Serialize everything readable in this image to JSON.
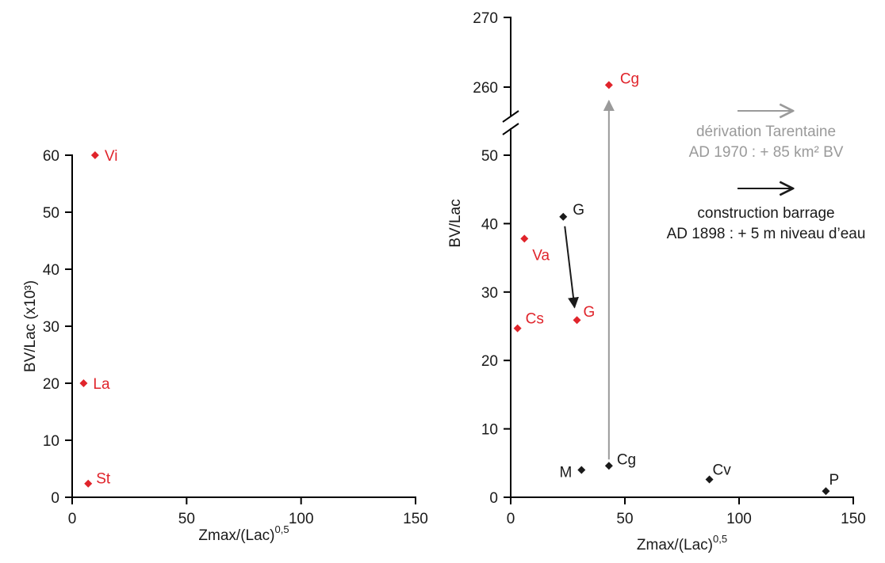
{
  "colors": {
    "red": "#e0242b",
    "black": "#1a1a1a",
    "grey": "#9a9a9a"
  },
  "chart_data": [
    {
      "type": "scatter",
      "xlabel": "Zmax/(Lac)",
      "xlabel_sup": "0,5",
      "ylabel": "BV/Lac (x10³)",
      "xlim": [
        0,
        150
      ],
      "ylim": [
        0,
        60
      ],
      "xticks": [
        "0",
        "50",
        "100",
        "150"
      ],
      "yticks": [
        "0",
        "10",
        "20",
        "30",
        "40",
        "50",
        "60"
      ],
      "points": [
        {
          "label": "Vi",
          "x": 10,
          "y": 60,
          "color": "red"
        },
        {
          "label": "La",
          "x": 5,
          "y": 20,
          "color": "red"
        },
        {
          "label": "St",
          "x": 7,
          "y": 2.4,
          "color": "red"
        }
      ]
    },
    {
      "type": "scatter",
      "xlabel": "Zmax/(Lac)",
      "xlabel_sup": "0,5",
      "ylabel": "BV/Lac",
      "xlim": [
        0,
        150
      ],
      "ylim": [
        0,
        270
      ],
      "axis_break": [
        55,
        255
      ],
      "xticks": [
        "0",
        "50",
        "100",
        "150"
      ],
      "yticks": [
        "0",
        "10",
        "20",
        "30",
        "40",
        "50",
        "260",
        "270"
      ],
      "points": [
        {
          "label": "Cg",
          "x": 43,
          "y": 260.3,
          "color": "red"
        },
        {
          "label": "G",
          "x": 23,
          "y": 41,
          "color": "black"
        },
        {
          "label": "Va",
          "x": 6,
          "y": 37.8,
          "color": "red"
        },
        {
          "label": "G",
          "x": 29,
          "y": 25.9,
          "color": "red"
        },
        {
          "label": "Cs",
          "x": 3,
          "y": 24.7,
          "color": "red"
        },
        {
          "label": "M",
          "x": 31,
          "y": 4,
          "color": "black"
        },
        {
          "label": "Cg",
          "x": 43,
          "y": 4.6,
          "color": "black"
        },
        {
          "label": "Cv",
          "x": 87,
          "y": 2.6,
          "color": "black"
        },
        {
          "label": "P",
          "x": 138,
          "y": 0.9,
          "color": "black"
        }
      ],
      "annotations": [
        {
          "from": [
            43,
            4.6
          ],
          "to": [
            43,
            260.3
          ],
          "color": "grey"
        },
        {
          "from": [
            23,
            41
          ],
          "to": [
            29,
            25.9
          ],
          "color": "black"
        }
      ],
      "legend": [
        {
          "lines": [
            "dérivation Tarentaine",
            "AD 1970 : + 85 km² BV"
          ],
          "color": "grey"
        },
        {
          "lines": [
            "construction barrage",
            "AD 1898 : + 5 m niveau d’eau"
          ],
          "color": "black"
        }
      ]
    }
  ]
}
